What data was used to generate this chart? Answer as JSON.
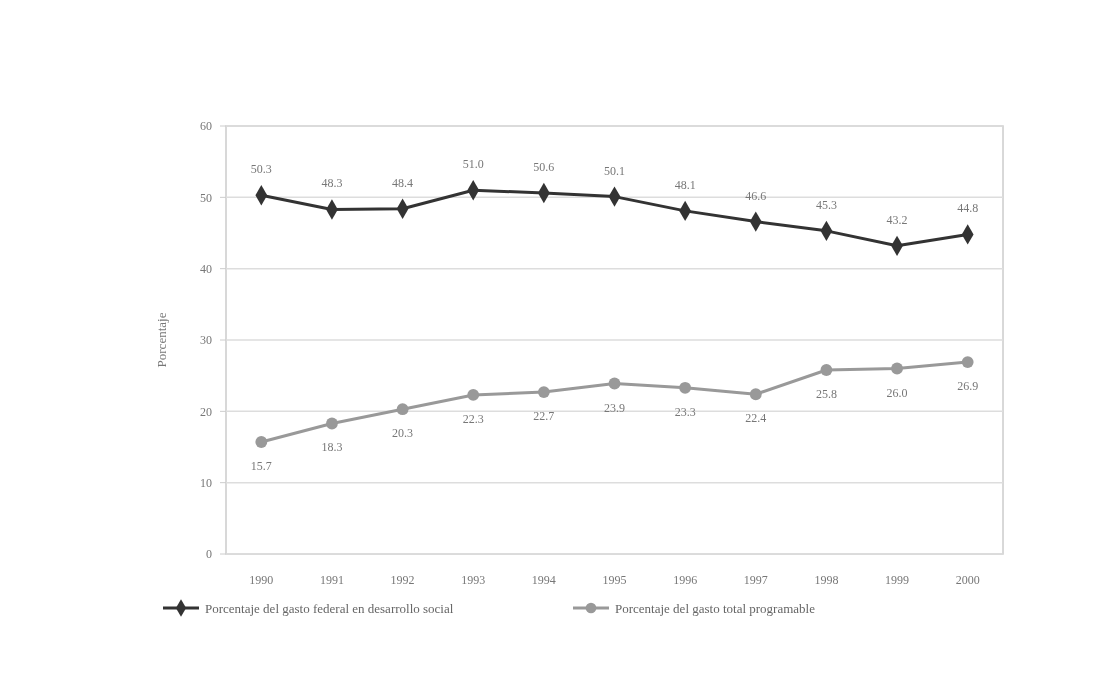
{
  "chart_data": {
    "type": "line",
    "ylabel": "Porcentaje",
    "categories": [
      "1990",
      "1991",
      "1992",
      "1993",
      "1994",
      "1995",
      "1996",
      "1997",
      "1998",
      "1999",
      "2000"
    ],
    "series": [
      {
        "name": "Porcentaje del gasto federal en desarrollo social",
        "color": "#333333",
        "marker": "diamond",
        "values": [
          50.3,
          48.3,
          48.4,
          51.0,
          50.6,
          50.1,
          48.1,
          46.6,
          45.3,
          43.2,
          44.8
        ],
        "value_labels": [
          "50.3",
          "48.3",
          "48.4",
          "51.0",
          "50.6",
          "50.1",
          "48.1",
          "46.6",
          "45.3",
          "43.2",
          "44.8"
        ]
      },
      {
        "name": "Porcentaje del gasto total programable",
        "color": "#999999",
        "marker": "circle",
        "values": [
          15.7,
          18.3,
          20.3,
          22.3,
          22.7,
          23.9,
          23.3,
          22.4,
          25.8,
          26.0,
          26.9
        ],
        "value_labels": [
          "15.7",
          "18.3",
          "20.3",
          "22.3",
          "22.7",
          "23.9",
          "23.3",
          "22.4",
          "25.8",
          "26.0",
          "26.9"
        ]
      }
    ],
    "ylim": [
      0,
      60
    ],
    "yticks": [
      0,
      10,
      20,
      30,
      40,
      50,
      60
    ],
    "grid": "y",
    "legend": "bottom"
  }
}
